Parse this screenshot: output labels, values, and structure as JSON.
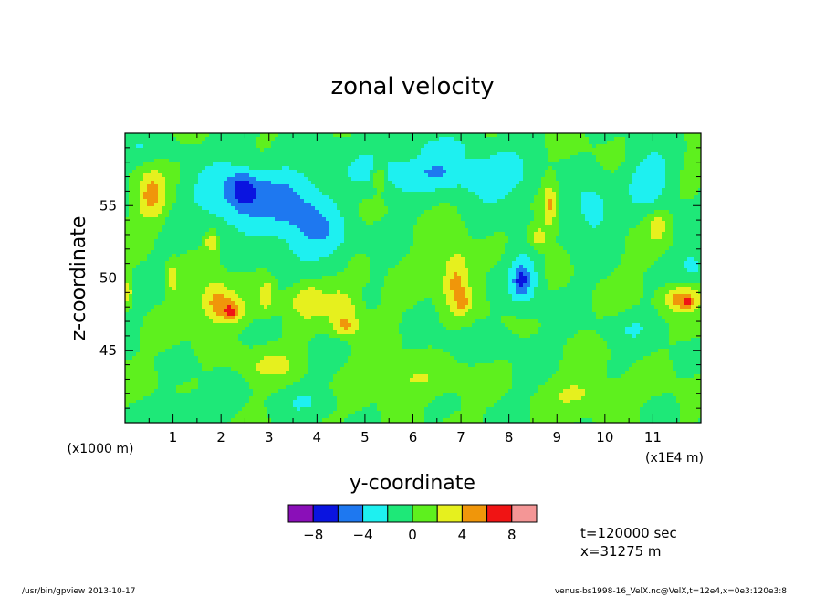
{
  "chart_data": {
    "type": "heatmap",
    "title": "zonal velocity",
    "xlabel": "y-coordinate",
    "ylabel": "z-coordinate",
    "x_unit_note": "(x1E4 m)",
    "y_unit_note": "(x1000 m)",
    "xlim": [
      0,
      12
    ],
    "ylim": [
      40,
      60
    ],
    "x_ticks": [
      1,
      2,
      3,
      4,
      5,
      6,
      7,
      8,
      9,
      10,
      11
    ],
    "y_ticks": [
      45,
      50,
      55
    ],
    "colorbar": {
      "levels": [
        -10,
        -8,
        -6,
        -4,
        -2,
        0,
        2,
        4,
        6,
        8,
        10
      ],
      "colors": [
        "#8a0fb8",
        "#0a14e0",
        "#1e78f0",
        "#1ef0f0",
        "#1ee878",
        "#5ef01e",
        "#e6f01e",
        "#f0960a",
        "#f01414",
        "#f49696"
      ],
      "tick_labels": [
        "−8",
        "−4",
        "0",
        "4",
        "8"
      ],
      "tick_values": [
        -8,
        -4,
        0,
        4,
        8
      ]
    },
    "field": {
      "background": 0,
      "features": [
        {
          "y": 0.55,
          "z": 55.8,
          "dy": 0.3,
          "dz": 1.8,
          "amp": 4.3
        },
        {
          "y": 2.5,
          "z": 55.5,
          "dy": 0.95,
          "dz": 2.4,
          "amp": -5.0
        },
        {
          "y": 2.45,
          "z": 56.2,
          "dy": 0.25,
          "dz": 1.0,
          "amp": -3.5
        },
        {
          "y": 3.6,
          "z": 54.5,
          "dy": 0.6,
          "dz": 3.0,
          "amp": -3.2
        },
        {
          "y": 4.25,
          "z": 52.8,
          "dy": 0.55,
          "dz": 2.2,
          "amp": -3.0
        },
        {
          "y": 5.4,
          "z": 57.3,
          "dy": 0.9,
          "dz": 1.6,
          "amp": -3.0
        },
        {
          "y": 6.7,
          "z": 57.4,
          "dy": 0.65,
          "dz": 1.3,
          "amp": -3.2
        },
        {
          "y": 7.7,
          "z": 56.9,
          "dy": 0.75,
          "dz": 1.8,
          "amp": -3.4
        },
        {
          "y": 8.3,
          "z": 50.0,
          "dy": 0.35,
          "dz": 2.0,
          "amp": -4.2
        },
        {
          "y": 8.25,
          "z": 49.8,
          "dy": 0.12,
          "dz": 0.8,
          "amp": -3.0
        },
        {
          "y": 9.7,
          "z": 54.7,
          "dy": 0.45,
          "dz": 2.2,
          "amp": -3.0
        },
        {
          "y": 11.0,
          "z": 56.7,
          "dy": 0.5,
          "dz": 2.0,
          "amp": -3.4
        },
        {
          "y": 11.85,
          "z": 50.8,
          "dy": 0.3,
          "dz": 1.2,
          "amp": -2.6
        },
        {
          "y": 1.9,
          "z": 48.4,
          "dy": 0.35,
          "dz": 1.4,
          "amp": 4.0
        },
        {
          "y": 2.2,
          "z": 47.8,
          "dy": 0.4,
          "dz": 1.0,
          "amp": 3.2
        },
        {
          "y": 2.25,
          "z": 47.6,
          "dy": 0.15,
          "dz": 0.5,
          "amp": 2.8
        },
        {
          "y": 1.8,
          "z": 52.5,
          "dy": 0.12,
          "dz": 0.8,
          "amp": 4.2
        },
        {
          "y": 2.95,
          "z": 48.8,
          "dy": 0.18,
          "dz": 1.2,
          "amp": 3.3
        },
        {
          "y": 3.8,
          "z": 48.5,
          "dy": 0.35,
          "dz": 1.2,
          "amp": 3.4
        },
        {
          "y": 4.55,
          "z": 48.0,
          "dy": 0.35,
          "dz": 1.4,
          "amp": 4.2
        },
        {
          "y": 4.6,
          "z": 46.6,
          "dy": 0.25,
          "dz": 0.6,
          "amp": 3.5
        },
        {
          "y": 6.9,
          "z": 49.8,
          "dy": 0.3,
          "dz": 2.2,
          "amp": 5.0
        },
        {
          "y": 7.05,
          "z": 48.3,
          "dy": 0.12,
          "dz": 0.6,
          "amp": 3.0
        },
        {
          "y": 8.85,
          "z": 55.0,
          "dy": 0.15,
          "dz": 1.6,
          "amp": 4.4
        },
        {
          "y": 8.6,
          "z": 52.8,
          "dy": 0.18,
          "dz": 0.8,
          "amp": 4.0
        },
        {
          "y": 11.6,
          "z": 48.6,
          "dy": 0.4,
          "dz": 0.9,
          "amp": 5.2
        },
        {
          "y": 11.75,
          "z": 48.3,
          "dy": 0.15,
          "dz": 0.4,
          "amp": 2.0
        },
        {
          "y": 11.1,
          "z": 53.6,
          "dy": 0.2,
          "dz": 1.0,
          "amp": 3.0
        },
        {
          "y": 5.3,
          "z": 57.0,
          "dy": 0.15,
          "dz": 0.9,
          "amp": 4.0
        },
        {
          "y": 1.0,
          "z": 50.0,
          "dy": 0.12,
          "dz": 1.0,
          "amp": 3.5
        },
        {
          "y": 0.05,
          "z": 49.0,
          "dy": 0.1,
          "dz": 0.8,
          "amp": 4.0
        },
        {
          "y": 4.9,
          "z": 50.5,
          "dy": 0.2,
          "dz": 1.0,
          "amp": 2.0
        },
        {
          "y": 6.0,
          "z": 43.0,
          "dy": 0.8,
          "dz": 1.2,
          "amp": 2.2
        },
        {
          "y": 9.6,
          "z": 42.0,
          "dy": 0.7,
          "dz": 1.2,
          "amp": 2.2
        },
        {
          "y": 3.0,
          "z": 44.0,
          "dy": 0.6,
          "dz": 1.0,
          "amp": 2.2
        },
        {
          "y": 1.5,
          "z": 41.0,
          "dy": 0.8,
          "dz": 1.0,
          "amp": -1.5
        },
        {
          "y": 7.5,
          "z": 45.5,
          "dy": 0.8,
          "dz": 1.0,
          "amp": -1.5
        },
        {
          "y": 10.5,
          "z": 46.5,
          "dy": 0.7,
          "dz": 1.0,
          "amp": -1.5
        },
        {
          "y": 3.8,
          "z": 41.5,
          "dy": 0.7,
          "dz": 1.0,
          "amp": -1.5
        },
        {
          "y": 0.3,
          "z": 59.0,
          "dy": 1.2,
          "dz": 0.9,
          "amp": -1.4
        },
        {
          "y": 6.5,
          "z": 59.2,
          "dy": 1.5,
          "dz": 0.7,
          "amp": -1.4
        }
      ]
    },
    "annotations": [
      "t=120000 sec",
      "x=31275 m"
    ]
  },
  "footer": {
    "left": "/usr/bin/gpview   2013-10-17",
    "right": "venus-bs1998-16_VelX.nc@VelX,t=12e4,x=0e3:120e3:8"
  }
}
